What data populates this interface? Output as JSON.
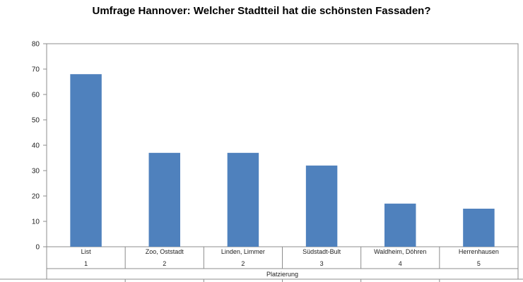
{
  "chart_data": {
    "type": "bar",
    "title": "Umfrage Hannover: Welcher Stadtteil hat die schönsten Fassaden?",
    "categories": [
      "List",
      "Zoo, Oststadt",
      "Linden, Limmer",
      "Südstadt-Bult",
      "Waldheim, Döhren",
      "Herrenhausen"
    ],
    "ranks": [
      "1",
      "2",
      "2",
      "3",
      "4",
      "5"
    ],
    "values": [
      68,
      37,
      37,
      32,
      17,
      15
    ],
    "xlabel": "Platzierung",
    "ylabel": "",
    "ylim": [
      0,
      80
    ],
    "yticks": [
      "0",
      "10",
      "20",
      "30",
      "40",
      "50",
      "60",
      "70",
      "80"
    ],
    "grid": false,
    "legend": "none",
    "bar_color": "#4f81bd"
  }
}
